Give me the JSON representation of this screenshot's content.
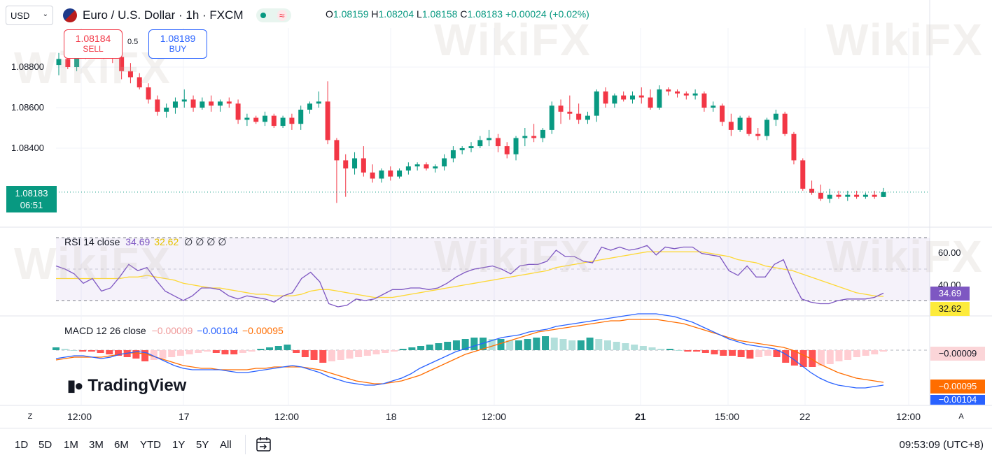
{
  "header": {
    "currency": "USD",
    "symbol_title": "Euro / U.S. Dollar · 1h · FXCM",
    "ohlc": {
      "o_label": "O",
      "o": "1.08159",
      "h_label": "H",
      "h": "1.08204",
      "l_label": "L",
      "l": "1.08158",
      "c_label": "C",
      "c": "1.08183",
      "change": "+0.00024 (+0.02%)"
    },
    "status_dot_color": "#089981"
  },
  "trade": {
    "sell_price": "1.08184",
    "sell_label": "SELL",
    "buy_price": "1.08189",
    "buy_label": "BUY",
    "spread": "0.5"
  },
  "price_axis": {
    "labels": [
      "1.08800",
      "1.08600",
      "1.08400"
    ],
    "current_price": "1.08183",
    "countdown": "06:51"
  },
  "rsi": {
    "legend_name": "RSI 14 close",
    "value": "34.69",
    "ma_value": "32.62",
    "extra": "∅ ∅ ∅ ∅",
    "axis_labels": [
      "60.00",
      "40.00"
    ],
    "value_color": "#7e57c2",
    "ma_color": "#fdd835"
  },
  "macd": {
    "legend_name": "MACD 12 26 close",
    "hist_value": "−0.00009",
    "macd_value": "−0.00104",
    "signal_value": "−0.00095",
    "tag_hist": "−0.00009",
    "tag_signal": "−0.00095",
    "tag_macd": "−0.00104"
  },
  "time_axis": {
    "labels": [
      "12:00",
      "17",
      "12:00",
      "18",
      "12:00",
      "21",
      "15:00",
      "22",
      "12:00"
    ],
    "left_button": "Z",
    "right_button": "A"
  },
  "bottom": {
    "timeframes": [
      "1D",
      "5D",
      "1M",
      "3M",
      "6M",
      "YTD",
      "1Y",
      "5Y",
      "All"
    ],
    "clock": "09:53:09 (UTC+8)"
  },
  "branding": {
    "logo_text": "TradingView",
    "watermark_text": "WikiFX"
  },
  "colors": {
    "up": "#089981",
    "down": "#f23645",
    "rsi_line": "#7e57c2",
    "rsi_ma": "#fdd835",
    "macd_line": "#2962ff",
    "signal_line": "#ff6d00"
  },
  "candles": [
    [
      1.0881,
      1.0887,
      1.0876,
      1.0884
    ],
    [
      1.0884,
      1.0888,
      1.0879,
      1.088
    ],
    [
      1.088,
      1.0887,
      1.0878,
      1.0885
    ],
    [
      1.0885,
      1.0893,
      1.0884,
      1.0891
    ],
    [
      1.0891,
      1.0896,
      1.0888,
      1.0892
    ],
    [
      1.0892,
      1.0895,
      1.0884,
      1.0887
    ],
    [
      1.0887,
      1.089,
      1.0882,
      1.0885
    ],
    [
      1.0885,
      1.0887,
      1.0874,
      1.0878
    ],
    [
      1.0878,
      1.0882,
      1.0872,
      1.0875
    ],
    [
      1.0875,
      1.0877,
      1.0869,
      1.087
    ],
    [
      1.087,
      1.0872,
      1.0862,
      1.0864
    ],
    [
      1.0864,
      1.0866,
      1.0856,
      1.0858
    ],
    [
      1.0858,
      1.0862,
      1.0855,
      1.086
    ],
    [
      1.086,
      1.0865,
      1.0857,
      1.0863
    ],
    [
      1.0863,
      1.0869,
      1.086,
      1.0864
    ],
    [
      1.0864,
      1.0866,
      1.0858,
      1.086
    ],
    [
      1.086,
      1.0865,
      1.0859,
      1.0863
    ],
    [
      1.0863,
      1.0866,
      1.0858,
      1.0861
    ],
    [
      1.0861,
      1.0864,
      1.0858,
      1.0863
    ],
    [
      1.0863,
      1.0865,
      1.086,
      1.0862
    ],
    [
      1.0862,
      1.0864,
      1.0852,
      1.0854
    ],
    [
      1.0854,
      1.0857,
      1.0851,
      1.0855
    ],
    [
      1.0855,
      1.0856,
      1.0852,
      1.0853
    ],
    [
      1.0853,
      1.0858,
      1.0851,
      1.0856
    ],
    [
      1.0856,
      1.0857,
      1.085,
      1.0851
    ],
    [
      1.0851,
      1.0856,
      1.085,
      1.0855
    ],
    [
      1.0855,
      1.0857,
      1.0849,
      1.0852
    ],
    [
      1.0852,
      1.0861,
      1.0849,
      1.0859
    ],
    [
      1.0859,
      1.0863,
      1.0857,
      1.0862
    ],
    [
      1.0862,
      1.0868,
      1.086,
      1.0863
    ],
    [
      1.0863,
      1.0873,
      1.0842,
      1.0844
    ],
    [
      1.0844,
      1.0845,
      1.0813,
      1.0834
    ],
    [
      1.0834,
      1.0837,
      1.0816,
      1.083
    ],
    [
      1.083,
      1.0838,
      1.0827,
      1.0835
    ],
    [
      1.0835,
      1.0841,
      1.0826,
      1.0828
    ],
    [
      1.0828,
      1.0832,
      1.0823,
      1.0825
    ],
    [
      1.0825,
      1.083,
      1.0823,
      1.0829
    ],
    [
      1.0829,
      1.0831,
      1.0824,
      1.0826
    ],
    [
      1.0826,
      1.083,
      1.0825,
      1.0829
    ],
    [
      1.0829,
      1.0833,
      1.0827,
      1.0831
    ],
    [
      1.0831,
      1.0833,
      1.0829,
      1.0832
    ],
    [
      1.0832,
      1.0833,
      1.0829,
      1.083
    ],
    [
      1.083,
      1.0832,
      1.0828,
      1.0831
    ],
    [
      1.0831,
      1.0837,
      1.0829,
      1.0835
    ],
    [
      1.0835,
      1.0841,
      1.0833,
      1.0839
    ],
    [
      1.0839,
      1.0841,
      1.0837,
      1.084
    ],
    [
      1.084,
      1.0843,
      1.0838,
      1.0841
    ],
    [
      1.0841,
      1.0846,
      1.084,
      1.0844
    ],
    [
      1.0844,
      1.0849,
      1.0841,
      1.0845
    ],
    [
      1.0845,
      1.0847,
      1.0838,
      1.0841
    ],
    [
      1.0841,
      1.0843,
      1.0835,
      1.0837
    ],
    [
      1.0837,
      1.0846,
      1.0834,
      1.0845
    ],
    [
      1.0845,
      1.085,
      1.0841,
      1.0846
    ],
    [
      1.0846,
      1.0852,
      1.0843,
      1.0845
    ],
    [
      1.0845,
      1.085,
      1.0843,
      1.0849
    ],
    [
      1.0849,
      1.0863,
      1.0847,
      1.0861
    ],
    [
      1.0861,
      1.0864,
      1.0852,
      1.0858
    ],
    [
      1.0858,
      1.0866,
      1.0854,
      1.0857
    ],
    [
      1.0857,
      1.0862,
      1.0852,
      1.0854
    ],
    [
      1.0854,
      1.0858,
      1.0852,
      1.0856
    ],
    [
      1.0856,
      1.0869,
      1.0853,
      1.0868
    ],
    [
      1.0868,
      1.087,
      1.086,
      1.0862
    ],
    [
      1.0862,
      1.0867,
      1.086,
      1.0866
    ],
    [
      1.0866,
      1.0868,
      1.0863,
      1.0864
    ],
    [
      1.0864,
      1.0868,
      1.0862,
      1.0866
    ],
    [
      1.0866,
      1.087,
      1.0862,
      1.0865
    ],
    [
      1.0865,
      1.0869,
      1.0859,
      1.086
    ],
    [
      1.086,
      1.0871,
      1.0859,
      1.0869
    ],
    [
      1.0869,
      1.087,
      1.0866,
      1.0868
    ],
    [
      1.0868,
      1.0869,
      1.0865,
      1.0867
    ],
    [
      1.0867,
      1.0868,
      1.0864,
      1.0866
    ],
    [
      1.0866,
      1.0869,
      1.0864,
      1.0867
    ],
    [
      1.0867,
      1.0868,
      1.0858,
      1.086
    ],
    [
      1.086,
      1.0863,
      1.0858,
      1.0861
    ],
    [
      1.0861,
      1.0862,
      1.0851,
      1.0853
    ],
    [
      1.0853,
      1.0857,
      1.0846,
      1.0849
    ],
    [
      1.0849,
      1.0856,
      1.0848,
      1.0855
    ],
    [
      1.0855,
      1.0856,
      1.0846,
      1.0847
    ],
    [
      1.0847,
      1.085,
      1.0844,
      1.0846
    ],
    [
      1.0846,
      1.0855,
      1.0844,
      1.0854
    ],
    [
      1.0854,
      1.0859,
      1.0851,
      1.0857
    ],
    [
      1.0857,
      1.0858,
      1.0846,
      1.0847
    ],
    [
      1.0847,
      1.0848,
      1.0832,
      1.0834
    ],
    [
      1.0834,
      1.0835,
      1.0819,
      1.082
    ],
    [
      1.082,
      1.0824,
      1.0817,
      1.0818
    ],
    [
      1.0818,
      1.0822,
      1.0814,
      1.0815
    ],
    [
      1.0815,
      1.082,
      1.0813,
      1.0817
    ],
    [
      1.0817,
      1.0819,
      1.0815,
      1.0816
    ],
    [
      1.0816,
      1.0819,
      1.0814,
      1.0817
    ],
    [
      1.0817,
      1.0819,
      1.0815,
      1.0816
    ],
    [
      1.0816,
      1.0818,
      1.0815,
      1.0817
    ],
    [
      1.0817,
      1.0819,
      1.0815,
      1.0816
    ],
    [
      1.08159,
      1.08204,
      1.08158,
      1.08183
    ]
  ],
  "rsi_values": [
    52,
    50,
    47,
    41,
    44,
    36,
    38,
    45,
    53,
    49,
    51,
    43,
    36,
    33,
    30,
    33,
    38,
    38,
    37,
    33,
    31,
    33,
    32,
    31,
    29,
    33,
    35,
    44,
    48,
    42,
    28,
    26,
    27,
    31,
    30,
    31,
    34,
    37,
    37,
    38,
    38,
    37,
    38,
    41,
    45,
    48,
    50,
    51,
    52,
    50,
    47,
    52,
    53,
    53,
    55,
    62,
    58,
    58,
    55,
    54,
    64,
    62,
    64,
    62,
    63,
    65,
    59,
    64,
    63,
    64,
    64,
    60,
    59,
    58,
    49,
    46,
    52,
    45,
    45,
    53,
    56,
    42,
    31,
    29,
    28,
    28,
    30,
    31,
    31,
    31,
    32,
    34.69
  ],
  "rsi_ma_values": [
    44,
    44,
    44,
    44,
    44,
    44,
    44,
    44,
    45,
    45,
    46,
    45,
    44,
    43,
    41,
    40,
    39,
    38,
    38,
    37,
    36,
    35,
    34,
    34,
    33,
    33,
    33,
    34,
    36,
    37,
    37,
    36,
    35,
    34,
    33,
    32,
    32,
    32,
    33,
    34,
    35,
    36,
    37,
    38,
    39,
    40,
    41,
    42,
    43,
    44,
    45,
    46,
    47,
    48,
    49,
    51,
    52,
    53,
    54,
    55,
    56,
    57,
    58,
    59,
    60,
    61,
    61,
    61,
    61,
    61,
    61,
    61,
    60,
    59,
    58,
    56,
    55,
    54,
    52,
    51,
    50,
    49,
    47,
    45,
    43,
    41,
    39,
    37,
    35,
    34,
    33,
    32.62
  ],
  "macd_hist": [
    2,
    1,
    0,
    -1,
    -1,
    -2,
    -3,
    -4,
    -5,
    -6,
    -8,
    -7,
    -6,
    -5,
    -4,
    -3,
    -2,
    -1,
    -2,
    -3,
    -3,
    -2,
    -1,
    1,
    2,
    3,
    4,
    -2,
    -5,
    -7,
    -9,
    -8,
    -7,
    -6,
    -5,
    -4,
    -3,
    -2,
    -1,
    1,
    2,
    3,
    4,
    5,
    6,
    7,
    8,
    9,
    9,
    8,
    8,
    7,
    7,
    8,
    9,
    10,
    9,
    8,
    7,
    7,
    9,
    8,
    7,
    6,
    5,
    4,
    3,
    2,
    1,
    1,
    0,
    -1,
    -1,
    -2,
    -3,
    -4,
    -4,
    -5,
    -6,
    -5,
    -4,
    -5,
    -9,
    -11,
    -12,
    -12,
    -11,
    -10,
    -8,
    -7,
    -5,
    -4,
    -3,
    -1
  ],
  "macd_line": [
    -6,
    -5,
    -4,
    -4,
    -5,
    -6,
    -5,
    -3,
    -2,
    -1,
    -2,
    -5,
    -8,
    -11,
    -13,
    -14,
    -14,
    -14,
    -14,
    -15,
    -16,
    -16,
    -15,
    -14,
    -13,
    -12,
    -11,
    -12,
    -14,
    -16,
    -19,
    -21,
    -23,
    -24,
    -25,
    -25,
    -24,
    -22,
    -20,
    -17,
    -13,
    -10,
    -7,
    -4,
    -1,
    1,
    3,
    5,
    7,
    9,
    10,
    11,
    13,
    14,
    15,
    17,
    18,
    19,
    20,
    21,
    22,
    23,
    24,
    25,
    26,
    26,
    26,
    25,
    24,
    22,
    20,
    17,
    14,
    11,
    8,
    6,
    4,
    3,
    2,
    1,
    -2,
    -6,
    -11,
    -16,
    -20,
    -23,
    -25,
    -26,
    -27,
    -27,
    -26,
    -25
  ],
  "signal_line": [
    -7,
    -6,
    -5,
    -5,
    -5,
    -5,
    -4,
    -3,
    -2,
    -2,
    -3,
    -5,
    -7,
    -9,
    -11,
    -12,
    -13,
    -13,
    -14,
    -14,
    -14,
    -14,
    -13,
    -13,
    -12,
    -12,
    -12,
    -12,
    -13,
    -14,
    -16,
    -18,
    -20,
    -22,
    -23,
    -24,
    -24,
    -23,
    -22,
    -20,
    -18,
    -15,
    -12,
    -9,
    -6,
    -3,
    -1,
    1,
    3,
    5,
    7,
    9,
    11,
    13,
    14,
    15,
    16,
    17,
    18,
    19,
    20,
    21,
    21,
    22,
    22,
    22,
    22,
    21,
    20,
    19,
    17,
    15,
    13,
    11,
    9,
    7,
    6,
    5,
    4,
    3,
    2,
    0,
    -3,
    -6,
    -10,
    -13,
    -16,
    -18,
    -20,
    -21,
    -22,
    -23
  ]
}
